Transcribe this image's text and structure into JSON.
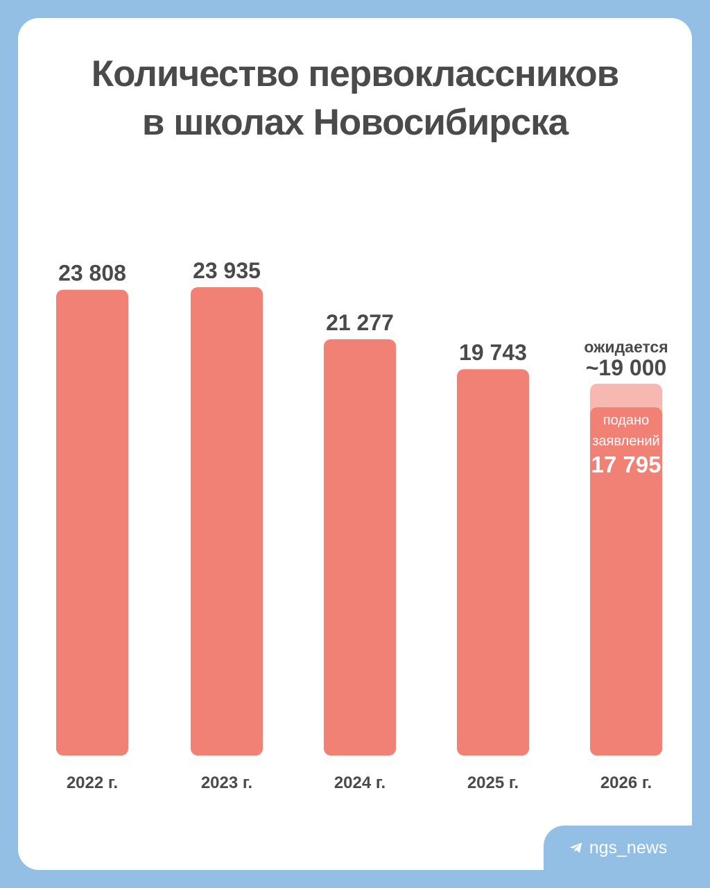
{
  "title_line1": "Количество первоклассников",
  "title_line2": "в школах Новосибирска",
  "footer": {
    "handle": "ngs_news",
    "icon": "telegram-icon"
  },
  "colors": {
    "background": "#92bfe3",
    "bar": "#f08174",
    "bar_expected": "#f7b8b1",
    "text": "#4a4a4a"
  },
  "chart_data": {
    "type": "bar",
    "categories": [
      "2022 г.",
      "2023 г.",
      "2024 г.",
      "2025 г.",
      "2026 г."
    ],
    "values": [
      23808,
      23935,
      21277,
      19743,
      17795
    ],
    "value_labels": [
      "23 808",
      "23 935",
      "21 277",
      "19 743",
      "17 795"
    ],
    "expected": {
      "category": "2026 г.",
      "value": 19000,
      "label_top": "ожидается",
      "label_value": "~19 000",
      "inbar_line1": "подано",
      "inbar_line2": "заявлений",
      "inbar_value": "17 795"
    },
    "ylim": [
      0,
      23935
    ],
    "grid": false,
    "legend": "none"
  }
}
